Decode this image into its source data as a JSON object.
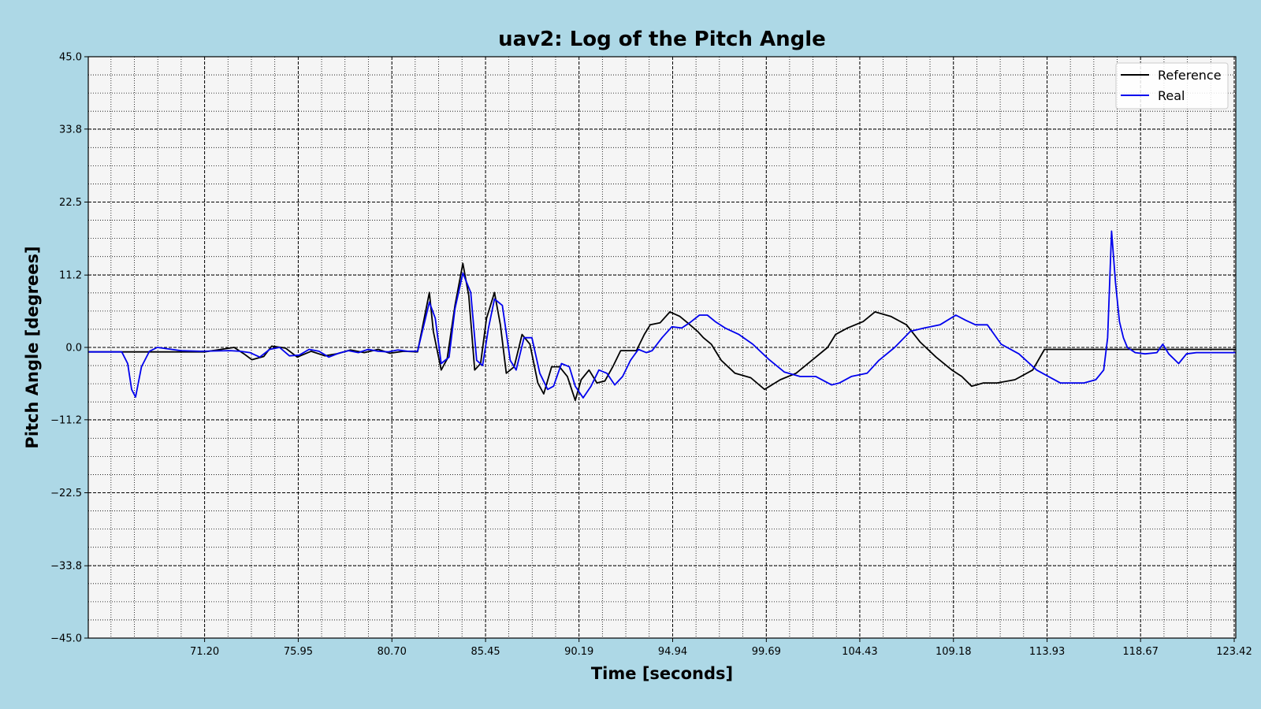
{
  "chart_data": {
    "type": "line",
    "title": "uav2: Log of the Pitch Angle",
    "xlabel": "Time [seconds]",
    "ylabel": "Pitch Angle [degrees]",
    "xlim": [
      65.3,
      123.5
    ],
    "ylim": [
      -45.0,
      45.0
    ],
    "x_ticks": [
      "71.20",
      "75.95",
      "80.70",
      "85.45",
      "90.19",
      "94.94",
      "99.69",
      "104.43",
      "109.18",
      "113.93",
      "118.67",
      "123.42"
    ],
    "y_ticks": [
      "45.0",
      "33.8",
      "22.5",
      "11.2",
      "0.0",
      "−11.2",
      "−22.5",
      "−33.8",
      "−45.0"
    ],
    "grid": true,
    "legend_position": "top-right",
    "colors": {
      "reference": "#000000",
      "real": "#0000ee",
      "plot_bg": "#f5f5f5",
      "figure_bg": "#add8e6"
    },
    "series": [
      {
        "name": "Reference",
        "x": [
          65.3,
          71.2,
          72.7,
          73.2,
          73.6,
          74.2,
          74.6,
          75.3,
          75.9,
          76.6,
          77.3,
          77.9,
          78.6,
          79.3,
          80.0,
          80.6,
          81.3,
          82.0,
          82.6,
          82.8,
          83.2,
          83.5,
          83.9,
          84.3,
          84.6,
          84.9,
          85.2,
          85.5,
          85.9,
          86.2,
          86.5,
          86.9,
          87.3,
          87.7,
          88.1,
          88.4,
          88.8,
          89.2,
          89.6,
          90.0,
          90.3,
          90.7,
          91.1,
          91.5,
          91.9,
          92.3,
          92.7,
          93.1,
          93.5,
          93.8,
          94.3,
          94.8,
          95.3,
          95.7,
          96.2,
          96.5,
          96.9,
          97.4,
          98.1,
          98.9,
          99.6,
          100.4,
          101.2,
          102.0,
          102.8,
          103.2,
          103.8,
          104.6,
          105.2,
          106.0,
          106.8,
          107.5,
          108.3,
          109.1,
          109.6,
          110.1,
          110.7,
          111.4,
          112.3,
          113.2,
          113.8,
          114.4,
          115.0,
          115.6,
          116.2,
          116.6,
          116.8,
          117.1,
          118.0,
          119.5,
          120.5,
          121.5,
          123.5
        ],
        "y": [
          -0.7,
          -0.7,
          0.0,
          -1.0,
          -1.9,
          -1.4,
          0.2,
          -0.1,
          -1.5,
          -0.6,
          -1.3,
          -1.0,
          -0.4,
          -0.8,
          -0.3,
          -0.9,
          -0.6,
          -0.7,
          8.5,
          2.5,
          -3.5,
          -1.8,
          6.5,
          13.0,
          8.0,
          -3.5,
          -2.5,
          4.5,
          8.5,
          3.5,
          -4.0,
          -3.0,
          2.0,
          0.5,
          -5.5,
          -7.2,
          -3.0,
          -3.0,
          -4.5,
          -8.2,
          -5.0,
          -3.5,
          -5.5,
          -5.2,
          -3.0,
          -0.5,
          -0.5,
          -0.5,
          2.0,
          3.5,
          3.8,
          5.5,
          4.8,
          3.8,
          2.5,
          1.5,
          0.5,
          -2.0,
          -4.0,
          -4.7,
          -6.5,
          -5.0,
          -4.0,
          -2.0,
          0.0,
          2.0,
          3.0,
          4.0,
          5.5,
          4.8,
          3.5,
          0.8,
          -1.5,
          -3.5,
          -4.5,
          -6.0,
          -5.5,
          -5.5,
          -5.0,
          -3.5,
          -0.3,
          -0.3,
          -0.3,
          -0.3,
          -0.3,
          -0.3,
          -0.3,
          -0.3,
          -0.3,
          -0.3,
          -0.3,
          -0.3,
          -0.3
        ]
      },
      {
        "name": "Real",
        "x": [
          65.3,
          67.0,
          67.3,
          67.5,
          67.7,
          68.0,
          68.4,
          68.8,
          70.0,
          71.0,
          72.5,
          73.0,
          73.5,
          74.0,
          74.5,
          75.0,
          75.5,
          76.0,
          76.5,
          77.0,
          77.5,
          78.0,
          78.5,
          79.0,
          79.5,
          80.0,
          80.5,
          81.0,
          81.5,
          82.0,
          82.6,
          82.9,
          83.2,
          83.6,
          83.9,
          84.3,
          84.7,
          85.0,
          85.3,
          85.6,
          85.9,
          86.3,
          86.7,
          87.0,
          87.4,
          87.8,
          88.2,
          88.6,
          88.9,
          89.3,
          89.7,
          90.0,
          90.4,
          90.8,
          91.2,
          91.6,
          92.0,
          92.4,
          92.8,
          93.2,
          93.6,
          93.9,
          94.4,
          94.9,
          95.4,
          95.8,
          96.3,
          96.7,
          97.1,
          97.6,
          98.3,
          99.0,
          99.8,
          100.6,
          101.4,
          102.2,
          103.0,
          103.4,
          104.0,
          104.8,
          105.4,
          106.2,
          107.0,
          107.7,
          108.5,
          109.3,
          109.8,
          110.3,
          110.9,
          111.6,
          112.5,
          113.4,
          114.0,
          114.6,
          115.2,
          115.8,
          116.4,
          116.8,
          117.0,
          117.2,
          117.4,
          117.6,
          117.8,
          118.0,
          118.4,
          118.9,
          119.5,
          119.8,
          120.1,
          120.6,
          121.0,
          121.5,
          122.5,
          123.5
        ],
        "y": [
          -0.7,
          -0.7,
          -2.5,
          -6.5,
          -7.7,
          -3.0,
          -0.6,
          0.0,
          -0.5,
          -0.6,
          -0.5,
          -0.6,
          -0.8,
          -1.5,
          -0.3,
          0.0,
          -1.3,
          -1.2,
          -0.3,
          -0.6,
          -1.5,
          -0.9,
          -0.5,
          -0.8,
          -0.3,
          -0.6,
          -0.7,
          -0.4,
          -0.6,
          -0.6,
          7.0,
          4.5,
          -2.5,
          -1.5,
          6.0,
          11.5,
          8.5,
          -2.0,
          -2.8,
          3.0,
          7.5,
          6.5,
          -2.0,
          -3.5,
          1.5,
          1.5,
          -4.0,
          -6.5,
          -6.0,
          -2.5,
          -3.0,
          -6.0,
          -7.8,
          -6.0,
          -3.5,
          -4.0,
          -5.8,
          -4.5,
          -2.0,
          -0.3,
          -0.8,
          -0.5,
          1.5,
          3.2,
          3.0,
          3.8,
          5.0,
          5.0,
          4.0,
          3.0,
          2.0,
          0.5,
          -1.8,
          -3.8,
          -4.5,
          -4.5,
          -5.8,
          -5.5,
          -4.5,
          -4.0,
          -2.0,
          0.0,
          2.5,
          3.0,
          3.5,
          5.0,
          4.2,
          3.5,
          3.5,
          0.5,
          -1.0,
          -3.5,
          -4.5,
          -5.5,
          -5.5,
          -5.5,
          -5.0,
          -3.5,
          1.5,
          18.0,
          10.0,
          4.0,
          1.5,
          0.0,
          -0.8,
          -1.0,
          -0.8,
          0.5,
          -1.0,
          -2.5,
          -1.0,
          -0.8,
          -0.8,
          -0.8
        ]
      }
    ]
  }
}
